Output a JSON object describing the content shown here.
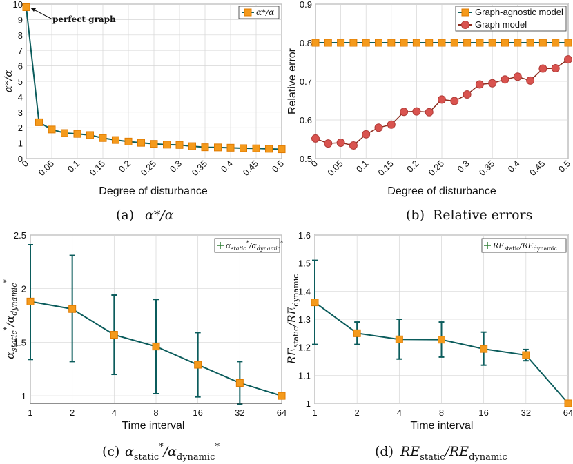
{
  "colors": {
    "teal": "#0b5c5c",
    "orange": "#f49a1c",
    "orange_edge": "#e07b00",
    "red": "#d9534f",
    "red_line": "#8b2a1c",
    "green_line": "#2e7d32"
  },
  "chart_data": [
    {
      "id": "a",
      "type": "line",
      "caption_prefix": "(a)",
      "caption_math": "α*/α",
      "xlabel": "Degree of disturbance",
      "ylabel": "α*/α",
      "xlim": [
        0,
        0.5
      ],
      "ylim": [
        0,
        10
      ],
      "xticks": [
        "0",
        "0.05",
        "0.1",
        "0.15",
        "0.2",
        "0.25",
        "0.3",
        "0.35",
        "0.4",
        "0.45",
        "0.5"
      ],
      "yticks": [
        "0",
        "1",
        "2",
        "3",
        "4",
        "5",
        "6",
        "7",
        "8",
        "9",
        "10"
      ],
      "annotation": "perfect graph",
      "legend": [
        "α*/α"
      ],
      "series": [
        {
          "name": "α*/α",
          "x": [
            0,
            0.025,
            0.05,
            0.075,
            0.1,
            0.125,
            0.15,
            0.175,
            0.2,
            0.225,
            0.25,
            0.275,
            0.3,
            0.325,
            0.35,
            0.375,
            0.4,
            0.425,
            0.45,
            0.475,
            0.5
          ],
          "y": [
            9.8,
            2.35,
            1.88,
            1.65,
            1.6,
            1.52,
            1.33,
            1.2,
            1.1,
            1.02,
            0.95,
            0.9,
            0.88,
            0.8,
            0.73,
            0.72,
            0.7,
            0.67,
            0.66,
            0.63,
            0.6
          ]
        }
      ]
    },
    {
      "id": "b",
      "type": "line",
      "caption_prefix": "(b)",
      "caption_text": "Relative errors",
      "xlabel": "Degree of disturbance",
      "ylabel": "Relative error",
      "xlim": [
        0,
        0.5
      ],
      "ylim": [
        0.5,
        0.9
      ],
      "xticks": [
        "0",
        "0.05",
        "0.1",
        "0.15",
        "0.2",
        "0.25",
        "0.3",
        "0.35",
        "0.4",
        "0.45",
        "0.5"
      ],
      "yticks": [
        "0.5",
        "0.6",
        "0.7",
        "0.8",
        "0.9"
      ],
      "legend": [
        "Graph-agnostic model",
        "Graph model"
      ],
      "series": [
        {
          "name": "Graph-agnostic model",
          "x": [
            0,
            0.025,
            0.05,
            0.075,
            0.1,
            0.125,
            0.15,
            0.175,
            0.2,
            0.225,
            0.25,
            0.275,
            0.3,
            0.325,
            0.35,
            0.375,
            0.4,
            0.425,
            0.45,
            0.475,
            0.5
          ],
          "y": [
            0.8,
            0.8,
            0.8,
            0.8,
            0.8,
            0.8,
            0.8,
            0.8,
            0.8,
            0.8,
            0.8,
            0.8,
            0.8,
            0.8,
            0.8,
            0.8,
            0.8,
            0.8,
            0.8,
            0.8,
            0.8
          ]
        },
        {
          "name": "Graph model",
          "x": [
            0,
            0.025,
            0.05,
            0.075,
            0.1,
            0.125,
            0.15,
            0.175,
            0.2,
            0.225,
            0.25,
            0.275,
            0.3,
            0.325,
            0.35,
            0.375,
            0.4,
            0.425,
            0.45,
            0.475,
            0.5
          ],
          "y": [
            0.552,
            0.539,
            0.541,
            0.534,
            0.563,
            0.58,
            0.588,
            0.621,
            0.622,
            0.62,
            0.653,
            0.649,
            0.666,
            0.692,
            0.695,
            0.705,
            0.712,
            0.702,
            0.733,
            0.734,
            0.757
          ]
        }
      ]
    },
    {
      "id": "c",
      "type": "line",
      "caption_prefix": "(c)",
      "xlabel": "Time interval",
      "ylabel": "α*static/α*dynamic",
      "xticks": [
        "1",
        "2",
        "4",
        "8",
        "16",
        "32",
        "64"
      ],
      "yticks": [
        "1",
        "1.5",
        "2",
        "2.5"
      ],
      "ylim": [
        0.93,
        2.5
      ],
      "series": [
        {
          "name": "α*static/α*dynamic",
          "x": [
            1,
            2,
            4,
            8,
            16,
            32,
            64
          ],
          "y": [
            1.88,
            1.81,
            1.57,
            1.46,
            1.29,
            1.12,
            1.0
          ],
          "err_low": [
            1.34,
            1.32,
            1.2,
            1.02,
            0.99,
            0.92,
            1.0
          ],
          "err_high": [
            2.41,
            2.31,
            1.94,
            1.9,
            1.59,
            1.32,
            1.0
          ]
        }
      ]
    },
    {
      "id": "d",
      "type": "line",
      "caption_prefix": "(d)",
      "xlabel": "Time interval",
      "ylabel": "RE static / RE dynamic",
      "xticks": [
        "1",
        "2",
        "4",
        "8",
        "16",
        "32",
        "64"
      ],
      "yticks": [
        "1",
        "1.1",
        "1.2",
        "1.3",
        "1.4",
        "1.5",
        "1.6"
      ],
      "ylim": [
        1.0,
        1.6
      ],
      "series": [
        {
          "name": "RE static / RE dynamic",
          "x": [
            1,
            2,
            4,
            8,
            16,
            32,
            64
          ],
          "y": [
            1.36,
            1.25,
            1.228,
            1.227,
            1.194,
            1.172,
            1.0
          ],
          "err_low": [
            1.21,
            1.21,
            1.158,
            1.165,
            1.136,
            1.152,
            1.0
          ],
          "err_high": [
            1.51,
            1.29,
            1.3,
            1.29,
            1.254,
            1.192,
            1.0
          ]
        }
      ]
    }
  ]
}
